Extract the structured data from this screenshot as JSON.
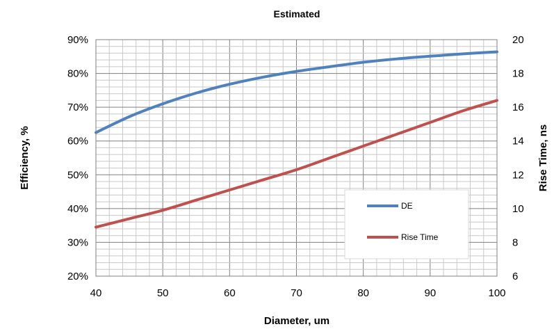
{
  "chart_data": {
    "type": "line",
    "title": "Estimated",
    "xlabel": "Diameter, um",
    "ylabel_left": "Efficiency, %",
    "ylabel_right": "Rise Time, ns",
    "xlim": [
      40,
      100
    ],
    "ylim_left": [
      20,
      90
    ],
    "ylim_right": [
      6,
      20
    ],
    "x_ticks": [
      40,
      50,
      60,
      70,
      80,
      90,
      100
    ],
    "y_left_ticks": [
      "20%",
      "30%",
      "40%",
      "50%",
      "60%",
      "70%",
      "80%",
      "90%"
    ],
    "y_right_ticks": [
      "6",
      "8",
      "10",
      "12",
      "14",
      "16",
      "18",
      "20"
    ],
    "grid": true,
    "legend_position": "inside-bottom-right",
    "series": [
      {
        "name": "DE",
        "axis": "left",
        "color": "#4f81bd",
        "x": [
          40,
          45,
          50,
          55,
          60,
          65,
          70,
          75,
          80,
          85,
          90,
          95,
          100
        ],
        "y": [
          62.5,
          67.2,
          71.0,
          74.2,
          76.8,
          78.9,
          80.6,
          82.0,
          83.3,
          84.3,
          85.1,
          85.8,
          86.4
        ]
      },
      {
        "name": "Rise Time",
        "axis": "right",
        "color": "#c0504d",
        "x": [
          40,
          45,
          50,
          55,
          60,
          65,
          70,
          75,
          80,
          85,
          90,
          95,
          100
        ],
        "y": [
          8.9,
          9.4,
          9.9,
          10.5,
          11.1,
          11.7,
          12.3,
          13.0,
          13.7,
          14.4,
          15.1,
          15.8,
          16.4
        ]
      }
    ]
  }
}
